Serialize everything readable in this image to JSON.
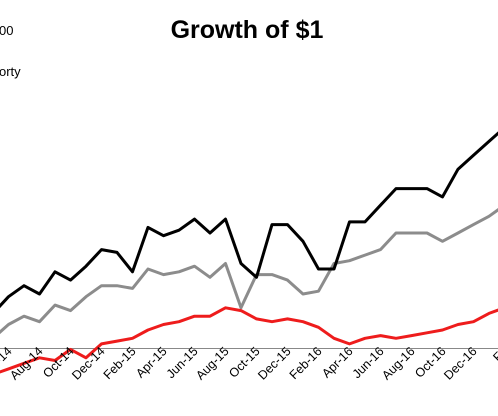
{
  "chart_data": {
    "type": "line",
    "title": "Growth of $1",
    "legend_fragments": [
      "00",
      "orty"
    ],
    "xlabel": "",
    "ylabel": "",
    "ylim": [
      0.9,
      2.4
    ],
    "grid": false,
    "x": [
      "May-14",
      "Jun-14",
      "Jul-14",
      "Aug-14",
      "Sep-14",
      "Oct-14",
      "Nov-14",
      "Dec-14",
      "Jan-15",
      "Feb-15",
      "Mar-15",
      "Apr-15",
      "May-15",
      "Jun-15",
      "Jul-15",
      "Aug-15",
      "Sep-15",
      "Oct-15",
      "Nov-15",
      "Dec-15",
      "Jan-16",
      "Feb-16",
      "Mar-16",
      "Apr-16",
      "May-16",
      "Jun-16",
      "Jul-16",
      "Aug-16",
      "Sep-16",
      "Oct-16",
      "Nov-16",
      "Dec-16",
      "Jan-17",
      "Feb-17"
    ],
    "tick_labels": [
      "Jun-14",
      "Aug-14",
      "Oct-14",
      "Dec-14",
      "Feb-15",
      "Apr-15",
      "Jun-15",
      "Aug-15",
      "Oct-15",
      "Dec-15",
      "Feb-16",
      "Apr-16",
      "Jun-16",
      "Aug-16",
      "Oct-16",
      "Dec-16",
      "Fe"
    ],
    "series": [
      {
        "color": "#000000",
        "values": [
          1.27,
          1.33,
          1.37,
          1.34,
          1.42,
          1.39,
          1.44,
          1.5,
          1.49,
          1.42,
          1.58,
          1.55,
          1.57,
          1.61,
          1.56,
          1.61,
          1.45,
          1.4,
          1.59,
          1.59,
          1.53,
          1.43,
          1.43,
          1.6,
          1.6,
          1.66,
          1.72,
          1.72,
          1.72,
          1.69,
          1.79,
          1.84,
          1.89,
          1.94
        ]
      },
      {
        "color": "#8c8c8c",
        "values": [
          1.18,
          1.23,
          1.26,
          1.24,
          1.3,
          1.28,
          1.33,
          1.37,
          1.37,
          1.36,
          1.43,
          1.41,
          1.42,
          1.44,
          1.4,
          1.45,
          1.29,
          1.41,
          1.41,
          1.39,
          1.34,
          1.35,
          1.45,
          1.46,
          1.48,
          1.5,
          1.56,
          1.56,
          1.56,
          1.53,
          1.56,
          1.59,
          1.62,
          1.66
        ]
      },
      {
        "color": "#ee1c1c",
        "values": [
          1.05,
          1.07,
          1.09,
          1.11,
          1.1,
          1.14,
          1.11,
          1.16,
          1.17,
          1.18,
          1.21,
          1.23,
          1.24,
          1.26,
          1.26,
          1.29,
          1.28,
          1.25,
          1.24,
          1.25,
          1.24,
          1.22,
          1.18,
          1.16,
          1.18,
          1.19,
          1.18,
          1.19,
          1.2,
          1.21,
          1.23,
          1.24,
          1.27,
          1.29
        ]
      }
    ]
  }
}
